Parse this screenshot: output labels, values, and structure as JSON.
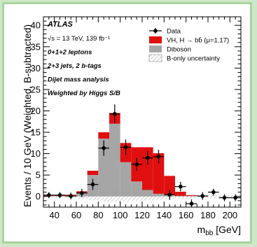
{
  "chart_data": {
    "type": "bar",
    "title": "",
    "experiment": "ATLAS",
    "info_lines": [
      "√s = 13 TeV, 139 fb⁻¹",
      "0+1+2 leptons",
      "2+3 jets, 2 b-tags",
      "Dijet mass analysis",
      "Weighted by Higgs S/B"
    ],
    "xlabel": "m_bb [GeV]",
    "xlabel_main": "m",
    "xlabel_sub": "bb",
    "xlabel_unit": " [GeV]",
    "ylabel": "Events / 10 GeV (Weighted, B-subtracted)",
    "xlim": [
      30,
      210
    ],
    "ylim": [
      -2.5,
      42
    ],
    "x_ticks": [
      40,
      60,
      80,
      100,
      120,
      140,
      160,
      180,
      200
    ],
    "y_ticks": [
      0,
      5,
      10,
      15,
      20,
      25,
      30,
      35,
      40
    ],
    "legend": {
      "placement": "top-right",
      "entries": [
        {
          "label": "Data",
          "kind": "marker"
        },
        {
          "label": "VH, H → bb̄ (μ=1.17)",
          "kind": "fill",
          "color": "#e01010"
        },
        {
          "label": "Diboson",
          "kind": "fill",
          "color": "#a6a6a6"
        },
        {
          "label": "B-only uncertainty",
          "kind": "hatch"
        }
      ]
    },
    "bin_edges": [
      30,
      40,
      50,
      60,
      70,
      80,
      90,
      100,
      110,
      120,
      130,
      140,
      150,
      160,
      170,
      180,
      190,
      200,
      210
    ],
    "series": [
      {
        "name": "Diboson",
        "color": "#a6a6a6",
        "values": [
          0.1,
          0.1,
          0.2,
          0.8,
          5.0,
          13.5,
          17.0,
          8.0,
          3.5,
          1.5,
          0.6,
          0.3,
          0.1,
          0.1,
          0.0,
          0.0,
          0.0,
          0.0
        ]
      },
      {
        "name": "VH, H → bb̄ (μ=1.17)",
        "color": "#e01010",
        "values": [
          0.1,
          0.1,
          0.2,
          0.4,
          1.0,
          1.5,
          2.5,
          4.5,
          8.0,
          10.0,
          9.5,
          4.5,
          1.0,
          0.2,
          0.1,
          0.0,
          0.0,
          0.0
        ]
      }
    ],
    "uncertainty_half_width": [
      0.3,
      0.3,
      0.4,
      0.6,
      0.9,
      1.2,
      1.3,
      1.2,
      1.0,
      0.9,
      0.8,
      0.6,
      0.5,
      0.4,
      0.3,
      0.3,
      0.3,
      0.3
    ],
    "data": {
      "x": [
        35,
        45,
        55,
        65,
        75,
        85,
        95,
        105,
        115,
        125,
        135,
        145,
        155,
        165,
        175,
        185,
        195,
        205
      ],
      "y": [
        0.3,
        0.3,
        0.1,
        0.8,
        2.8,
        11.3,
        19.3,
        11.5,
        7.5,
        9.0,
        9.3,
        0.4,
        2.3,
        -1.7,
        0.1,
        1.0,
        -0.3,
        -0.3
      ],
      "yerr": [
        0.7,
        0.7,
        0.8,
        1.0,
        1.3,
        1.8,
        2.2,
        1.8,
        1.5,
        1.6,
        1.6,
        1.2,
        1.1,
        1.0,
        0.9,
        0.8,
        0.8,
        0.8
      ]
    }
  }
}
